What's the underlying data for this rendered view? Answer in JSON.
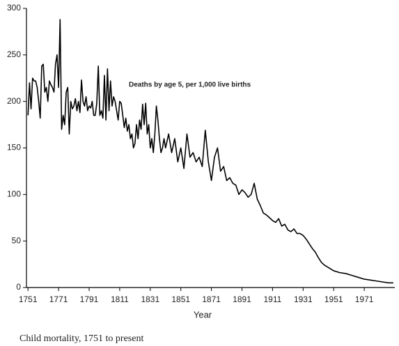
{
  "chart_data": {
    "type": "line",
    "annotation": "Deaths by age 5, per 1,000 live births",
    "xlabel": "Year",
    "caption": "Child mortality, 1751 to present",
    "x": [
      1751,
      1752,
      1753,
      1754,
      1755,
      1756,
      1757,
      1758,
      1759,
      1760,
      1761,
      1762,
      1763,
      1764,
      1765,
      1766,
      1767,
      1768,
      1769,
      1770,
      1771,
      1772,
      1773,
      1774,
      1775,
      1776,
      1777,
      1778,
      1779,
      1780,
      1781,
      1782,
      1783,
      1784,
      1785,
      1786,
      1787,
      1788,
      1789,
      1790,
      1791,
      1792,
      1793,
      1794,
      1795,
      1796,
      1797,
      1798,
      1799,
      1800,
      1801,
      1802,
      1803,
      1804,
      1805,
      1806,
      1807,
      1808,
      1809,
      1810,
      1811,
      1812,
      1813,
      1814,
      1815,
      1816,
      1817,
      1818,
      1819,
      1820,
      1821,
      1822,
      1823,
      1824,
      1825,
      1826,
      1827,
      1828,
      1829,
      1830,
      1831,
      1832,
      1833,
      1834,
      1835,
      1836,
      1837,
      1838,
      1839,
      1840,
      1841,
      1843,
      1845,
      1847,
      1849,
      1851,
      1853,
      1855,
      1857,
      1859,
      1861,
      1863,
      1865,
      1867,
      1869,
      1871,
      1873,
      1875,
      1877,
      1879,
      1881,
      1883,
      1885,
      1887,
      1889,
      1891,
      1893,
      1895,
      1897,
      1899,
      1901,
      1903,
      1905,
      1907,
      1909,
      1911,
      1913,
      1915,
      1917,
      1919,
      1921,
      1923,
      1925,
      1927,
      1929,
      1931,
      1933,
      1935,
      1937,
      1939,
      1941,
      1943,
      1945,
      1947,
      1949,
      1951,
      1955,
      1959,
      1963,
      1967,
      1971,
      1975,
      1979,
      1983,
      1987,
      1990
    ],
    "values": [
      185,
      220,
      192,
      225,
      222,
      222,
      215,
      200,
      182,
      238,
      240,
      210,
      215,
      200,
      222,
      218,
      215,
      210,
      240,
      250,
      215,
      288,
      170,
      185,
      175,
      210,
      215,
      165,
      200,
      192,
      195,
      203,
      190,
      200,
      188,
      223,
      200,
      195,
      205,
      190,
      195,
      193,
      200,
      185,
      185,
      198,
      238,
      185,
      190,
      182,
      228,
      180,
      235,
      190,
      222,
      195,
      205,
      200,
      190,
      180,
      200,
      198,
      185,
      172,
      182,
      168,
      175,
      160,
      165,
      150,
      155,
      175,
      160,
      180,
      170,
      197,
      175,
      198,
      165,
      175,
      150,
      160,
      145,
      165,
      195,
      180,
      160,
      145,
      150,
      160,
      150,
      165,
      145,
      160,
      135,
      150,
      128,
      165,
      140,
      145,
      135,
      140,
      130,
      169,
      135,
      115,
      140,
      150,
      125,
      130,
      115,
      118,
      112,
      110,
      100,
      105,
      102,
      97,
      100,
      112,
      95,
      88,
      80,
      78,
      75,
      72,
      70,
      74,
      66,
      68,
      62,
      60,
      63,
      58,
      58,
      56,
      52,
      47,
      42,
      38,
      32,
      27,
      24,
      22,
      20,
      18,
      16,
      15,
      13,
      11,
      9,
      8,
      7,
      6,
      5,
      5
    ],
    "color": "#000000",
    "xlim": [
      1750,
      1991
    ],
    "ylim": [
      0,
      300
    ],
    "xticks": [
      1751,
      1771,
      1791,
      1811,
      1831,
      1851,
      1871,
      1891,
      1911,
      1931,
      1951,
      1971
    ],
    "yticks": [
      0,
      50,
      100,
      150,
      200,
      250,
      300
    ]
  }
}
